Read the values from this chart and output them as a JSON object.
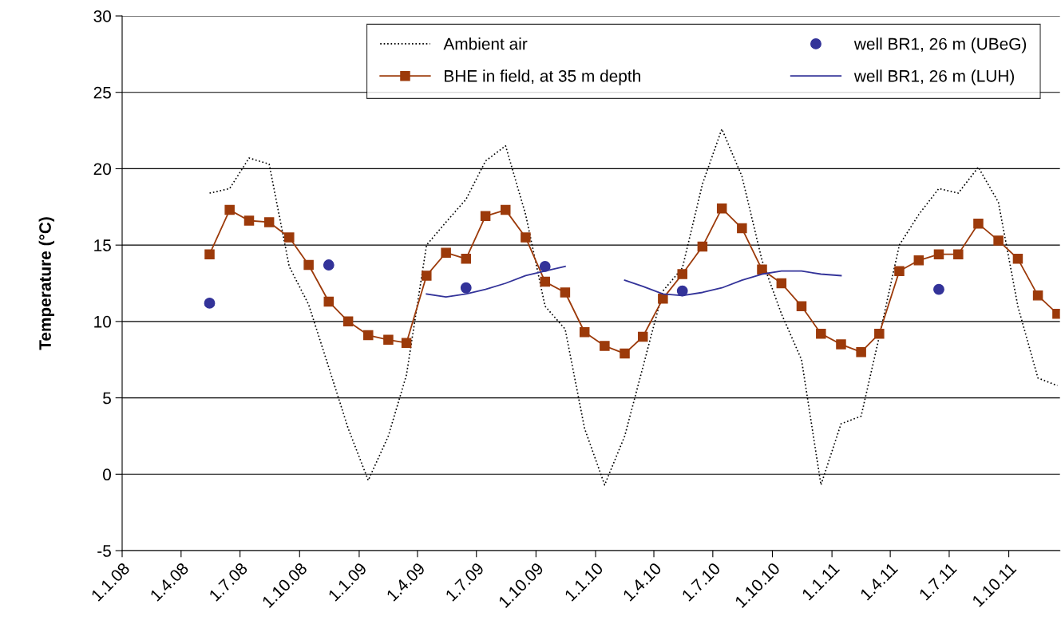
{
  "chart_data": {
    "type": "line",
    "ylabel": "Temperature (°C)",
    "x": [
      "2008-05-15",
      "2008-06-15",
      "2008-07-15",
      "2008-08-15",
      "2008-09-15",
      "2008-10-15",
      "2008-11-15",
      "2008-12-15",
      "2009-01-15",
      "2009-02-15",
      "2009-03-15",
      "2009-04-15",
      "2009-05-15",
      "2009-06-15",
      "2009-07-15",
      "2009-08-15",
      "2009-09-15",
      "2009-10-15",
      "2009-11-15",
      "2009-12-15",
      "2010-01-15",
      "2010-02-15",
      "2010-03-15",
      "2010-04-15",
      "2010-05-15",
      "2010-06-15",
      "2010-07-15",
      "2010-08-15",
      "2010-09-15",
      "2010-10-15",
      "2010-11-15",
      "2010-12-15",
      "2011-01-15",
      "2011-02-15",
      "2011-03-15",
      "2011-04-15",
      "2011-05-15",
      "2011-06-15",
      "2011-07-15",
      "2011-08-15",
      "2011-09-15",
      "2011-10-15",
      "2011-11-15",
      "2011-12-15"
    ],
    "series": [
      {
        "name": "Ambient air",
        "color": "#000000",
        "line_style": "dotted",
        "marker": "none",
        "values": [
          18.4,
          18.7,
          20.7,
          20.3,
          13.6,
          11.1,
          7.0,
          3.0,
          -0.4,
          2.5,
          6.5,
          15.0,
          16.5,
          18.0,
          20.5,
          21.5,
          17.0,
          11.0,
          9.5,
          3.0,
          -0.7,
          2.5,
          7.0,
          12.0,
          13.5,
          19.0,
          22.6,
          19.5,
          14.0,
          10.5,
          7.5,
          -0.7,
          3.3,
          3.8,
          9.0,
          15.0,
          17.0,
          18.7,
          18.4,
          20.1,
          17.8,
          11.0,
          6.3,
          5.8
        ]
      },
      {
        "name": "BHE in field, at 35 m depth",
        "color": "#9c3a0a",
        "line_style": "solid",
        "marker": "square",
        "values": [
          14.4,
          17.3,
          16.6,
          16.5,
          15.5,
          13.7,
          11.3,
          10.0,
          9.1,
          8.8,
          8.6,
          13.0,
          14.5,
          14.1,
          16.9,
          17.3,
          15.5,
          12.6,
          11.9,
          9.3,
          8.4,
          7.9,
          9.0,
          11.5,
          13.1,
          14.9,
          17.4,
          16.1,
          13.4,
          12.5,
          11.0,
          9.2,
          8.5,
          8.0,
          9.2,
          13.3,
          14.0,
          14.4,
          14.4,
          16.4,
          15.3,
          14.1,
          11.7,
          10.5
        ]
      },
      {
        "name": "well BR1, 26 m (UBeG)",
        "type": "scatter",
        "color": "#333399",
        "marker": "circle",
        "x": [
          "2008-05-15",
          "2008-11-15",
          "2009-06-15",
          "2009-10-15",
          "2010-05-15",
          "2011-06-15"
        ],
        "values": [
          11.2,
          13.7,
          12.2,
          13.6,
          12.0,
          12.1
        ]
      },
      {
        "name": "well BR1, 26 m (LUH)",
        "color": "#333399",
        "line_style": "solid",
        "marker": "none",
        "x": [
          "2009-04-15",
          "2009-05-15",
          "2009-06-15",
          "2009-07-15",
          "2009-08-15",
          "2009-09-15",
          "2009-10-15",
          "2009-11-15",
          "2010-01-15",
          "2010-02-15",
          "2010-03-15",
          "2010-04-15",
          "2010-05-15",
          "2010-06-15",
          "2010-07-15",
          "2010-08-15",
          "2010-09-15",
          "2010-10-15",
          "2010-11-15",
          "2010-12-15",
          "2011-01-15"
        ],
        "values": [
          11.8,
          11.6,
          11.8,
          12.1,
          12.5,
          13.0,
          13.3,
          13.6,
          null,
          12.7,
          12.3,
          11.8,
          11.7,
          11.9,
          12.2,
          12.7,
          13.1,
          13.3,
          13.3,
          13.1,
          13.0
        ]
      }
    ],
    "xlim": [
      "2008-01-01",
      "2011-12-19"
    ],
    "xticks": [
      {
        "value": "2008-01-01",
        "label": "1.1.08"
      },
      {
        "value": "2008-04-01",
        "label": "1.4.08"
      },
      {
        "value": "2008-07-01",
        "label": "1.7.08"
      },
      {
        "value": "2008-10-01",
        "label": "1.10.08"
      },
      {
        "value": "2009-01-01",
        "label": "1.1.09"
      },
      {
        "value": "2009-04-01",
        "label": "1.4.09"
      },
      {
        "value": "2009-07-01",
        "label": "1.7.09"
      },
      {
        "value": "2009-10-01",
        "label": "1.10.09"
      },
      {
        "value": "2010-01-01",
        "label": "1.1.10"
      },
      {
        "value": "2010-04-01",
        "label": "1.4.10"
      },
      {
        "value": "2010-07-01",
        "label": "1.7.10"
      },
      {
        "value": "2010-10-01",
        "label": "1.10.10"
      },
      {
        "value": "2011-01-01",
        "label": "1.1.11"
      },
      {
        "value": "2011-04-01",
        "label": "1.4.11"
      },
      {
        "value": "2011-07-01",
        "label": "1.7.11"
      },
      {
        "value": "2011-10-01",
        "label": "1.10.11"
      }
    ],
    "ylim": [
      -5,
      30
    ],
    "yticks": [
      -5,
      0,
      5,
      10,
      15,
      20,
      25,
      30
    ],
    "grid": "y",
    "legend": "top"
  }
}
